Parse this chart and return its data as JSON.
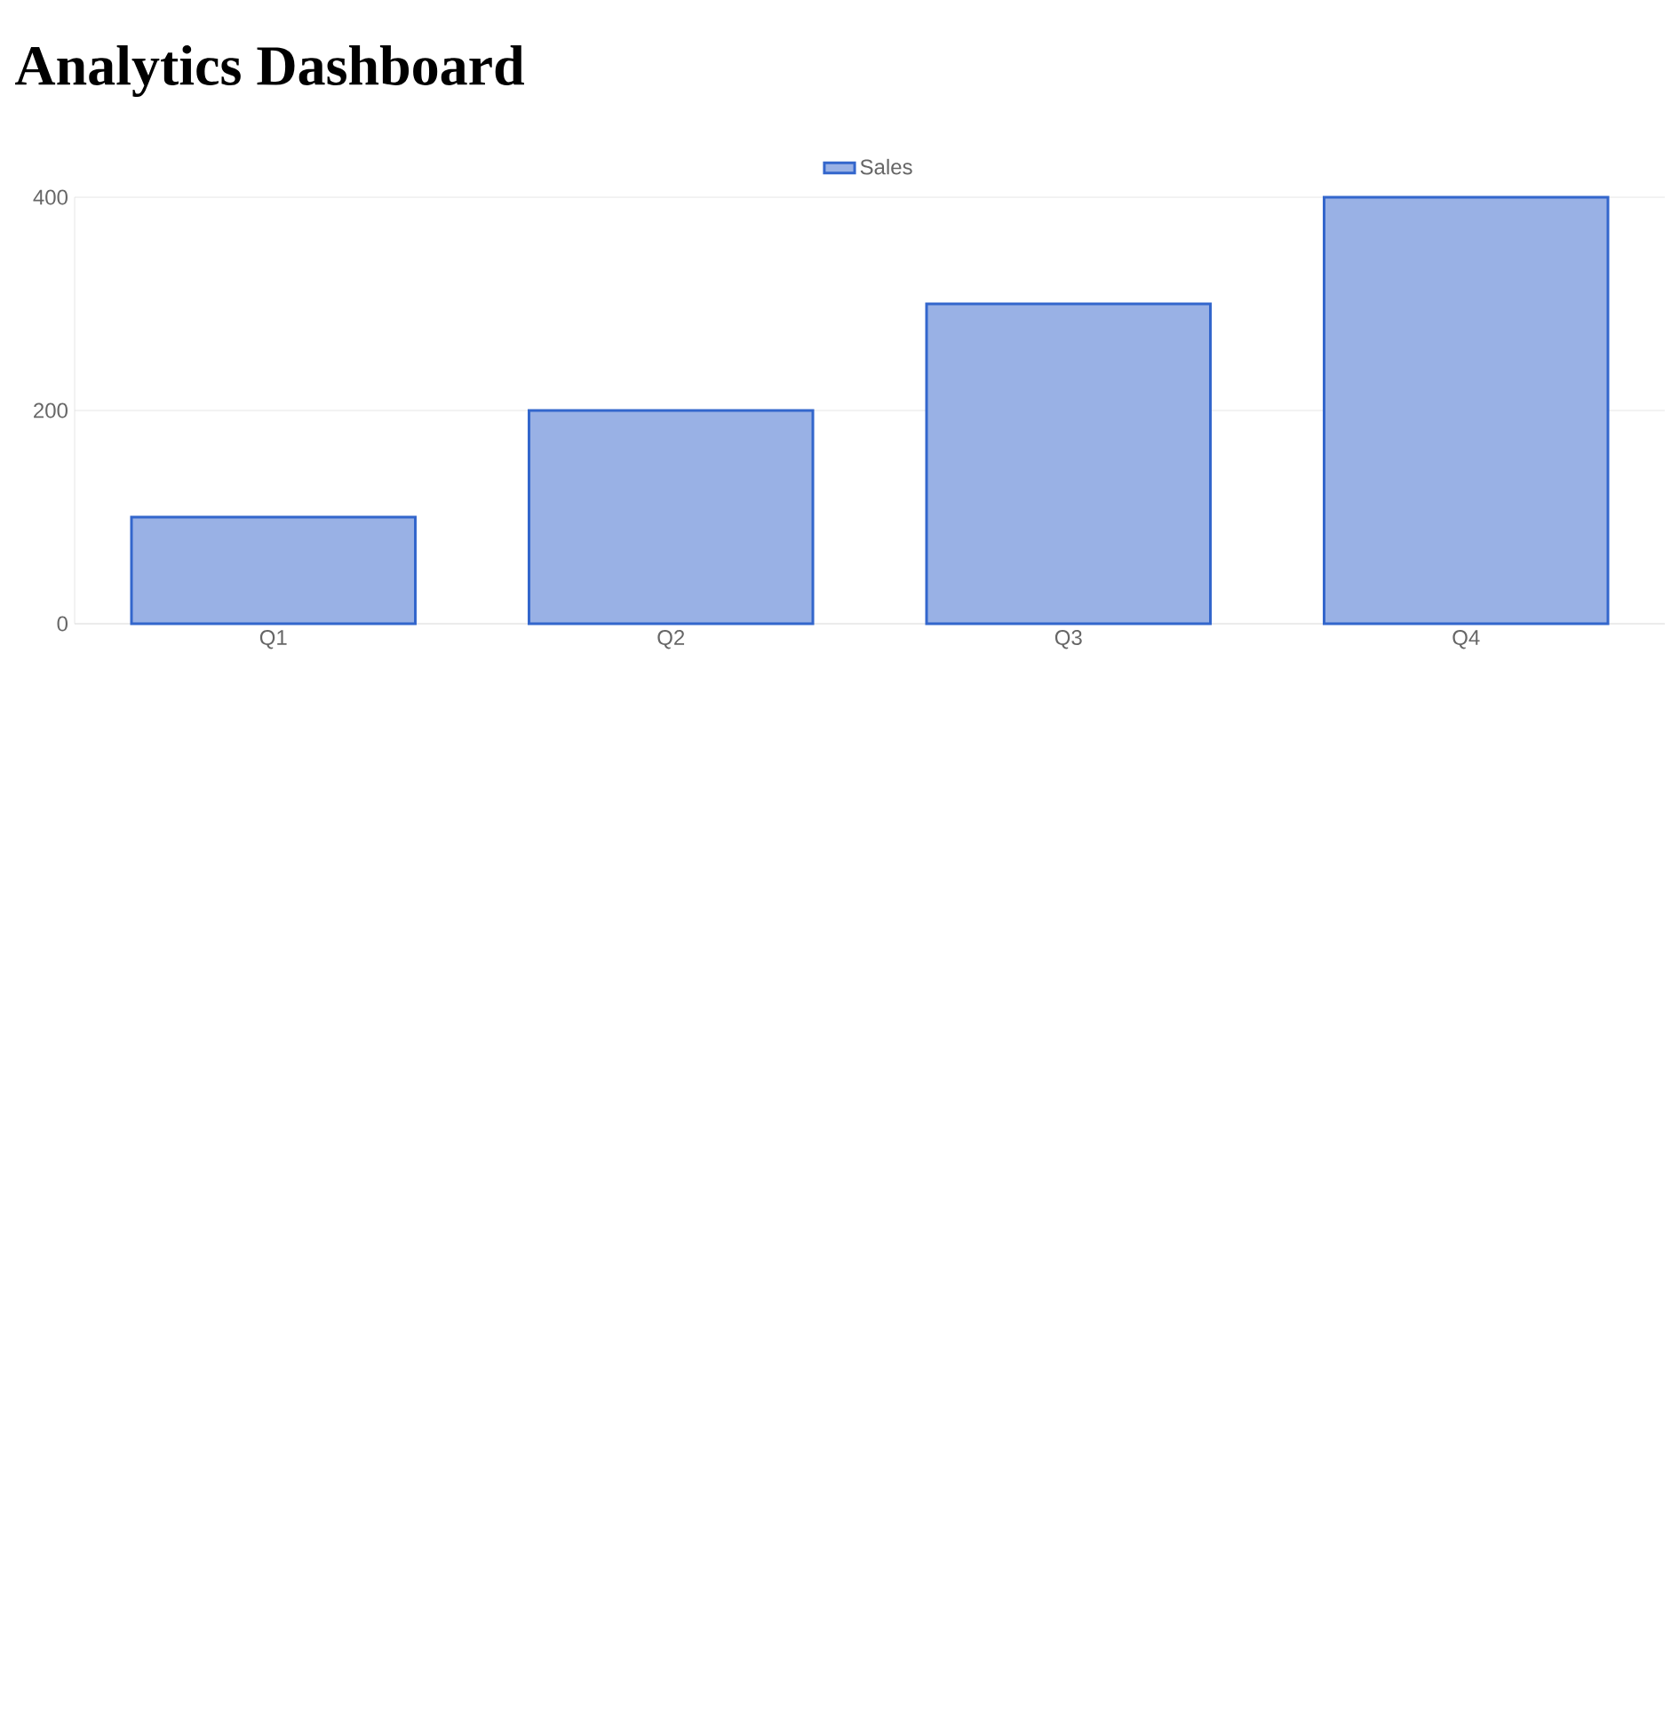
{
  "chart_data": {
    "type": "bar",
    "title": "Analytics Dashboard",
    "categories": [
      "Q1",
      "Q2",
      "Q3",
      "Q4"
    ],
    "series": [
      {
        "name": "Sales",
        "color": "#99b1e5",
        "values": [
          100,
          200,
          300,
          400
        ]
      }
    ],
    "ylim": [
      0,
      400
    ],
    "yticks": [
      0,
      200,
      400
    ],
    "grid": "y",
    "legend": "top"
  }
}
